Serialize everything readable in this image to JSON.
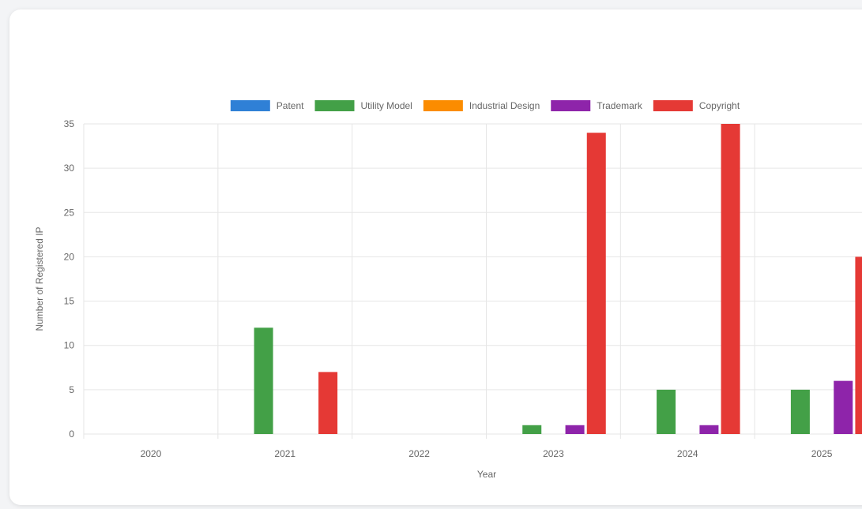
{
  "chart_data": {
    "type": "bar",
    "title": "",
    "xlabel": "Year",
    "ylabel": "Number of Registered IP",
    "categories": [
      "2020",
      "2021",
      "2022",
      "2023",
      "2024",
      "2025"
    ],
    "ylim": [
      0,
      35
    ],
    "yticks": [
      0,
      5,
      10,
      15,
      20,
      25,
      30,
      35
    ],
    "grid": true,
    "legend_position": "top",
    "series": [
      {
        "name": "Patent",
        "color": "#2f80d6",
        "values": [
          0,
          0,
          0,
          0,
          0,
          0
        ]
      },
      {
        "name": "Utility Model",
        "color": "#43a047",
        "values": [
          0,
          12,
          0,
          1,
          5,
          5
        ]
      },
      {
        "name": "Industrial Design",
        "color": "#fb8c00",
        "values": [
          0,
          0,
          0,
          0,
          0,
          0
        ]
      },
      {
        "name": "Trademark",
        "color": "#8e24aa",
        "values": [
          0,
          0,
          0,
          1,
          1,
          6
        ]
      },
      {
        "name": "Copyright",
        "color": "#e53935",
        "values": [
          0,
          7,
          0,
          34,
          35,
          20
        ]
      }
    ]
  }
}
